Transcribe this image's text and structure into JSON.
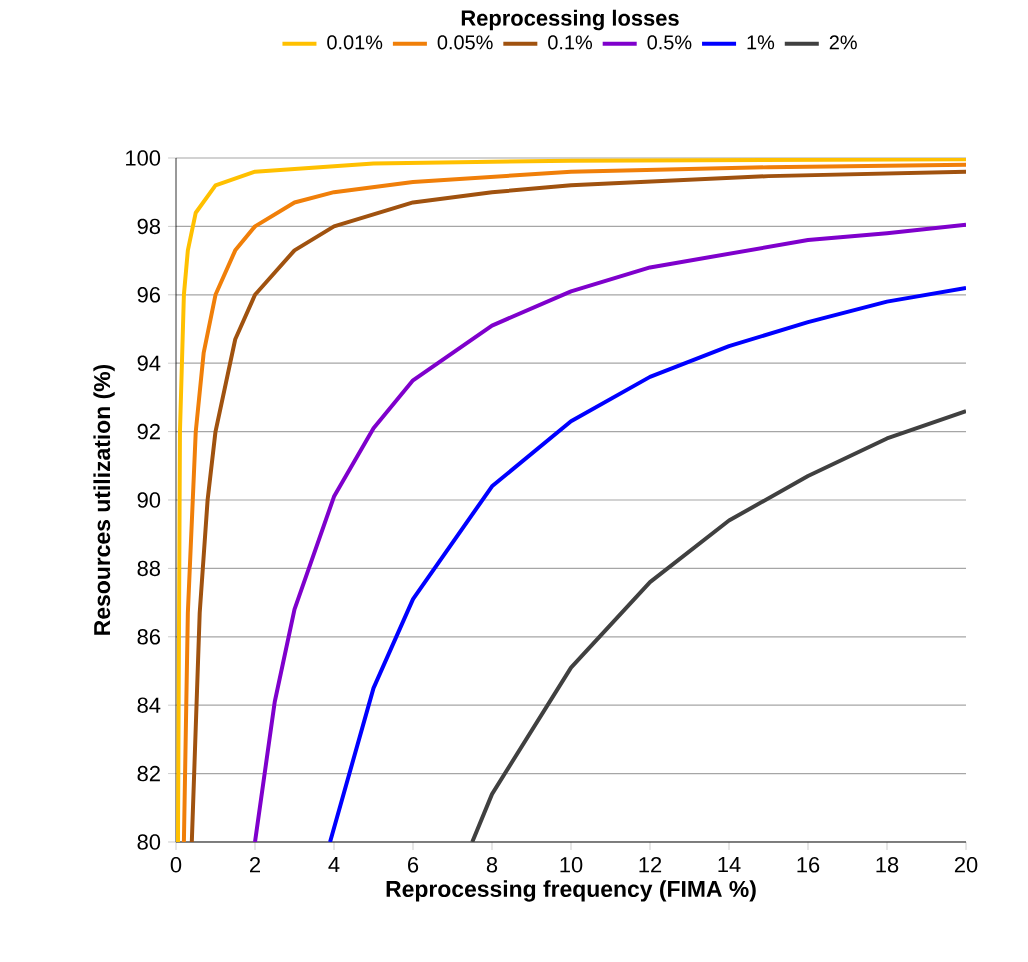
{
  "chart_data": {
    "type": "line",
    "legend_title": "Reprocessing losses",
    "xlabel": "Reprocessing frequency (FIMA %)",
    "ylabel": "Resources utilization (%)",
    "xlim": [
      0,
      20
    ],
    "ylim": [
      80,
      100
    ],
    "xticks": [
      0,
      2,
      4,
      6,
      8,
      10,
      12,
      14,
      16,
      18,
      20
    ],
    "yticks": [
      80,
      82,
      84,
      86,
      88,
      90,
      92,
      94,
      96,
      98,
      100
    ],
    "grid": "y",
    "legend": "top",
    "marker": "none",
    "line_style": "solid",
    "series": [
      {
        "name": "0.01%",
        "color": "#ffc000",
        "x": [
          0.05,
          0.1,
          0.2,
          0.3,
          0.5,
          1,
          2,
          5,
          10,
          20
        ],
        "values": [
          80,
          92,
          96,
          97.3,
          98.4,
          99.2,
          99.6,
          99.84,
          99.92,
          99.96
        ]
      },
      {
        "name": "0.05%",
        "color": "#f07f09",
        "x": [
          0.2,
          0.3,
          0.5,
          0.7,
          1,
          1.5,
          2,
          3,
          4,
          6,
          10,
          15,
          20
        ],
        "values": [
          80,
          86.7,
          92,
          94.3,
          96,
          97.3,
          98,
          98.7,
          99,
          99.3,
          99.6,
          99.73,
          99.8
        ]
      },
      {
        "name": "0.1%",
        "color": "#a0520f",
        "x": [
          0.4,
          0.6,
          0.8,
          1,
          1.5,
          2,
          3,
          4,
          6,
          8,
          10,
          15,
          20
        ],
        "values": [
          80,
          86.7,
          90,
          92,
          94.7,
          96,
          97.3,
          98,
          98.7,
          99,
          99.2,
          99.47,
          99.6
        ]
      },
      {
        "name": "0.5%",
        "color": "#7f00cc",
        "x": [
          2,
          2.5,
          3,
          4,
          5,
          6,
          8,
          10,
          12,
          14,
          16,
          18,
          20
        ],
        "values": [
          80,
          84.1,
          86.8,
          90.1,
          92.1,
          93.5,
          95.1,
          96.1,
          96.8,
          97.2,
          97.6,
          97.8,
          98.05
        ]
      },
      {
        "name": "1%",
        "color": "#0000ff",
        "x": [
          3.9,
          5,
          6,
          8,
          10,
          12,
          14,
          16,
          18,
          20
        ],
        "values": [
          80,
          84.5,
          87.1,
          90.4,
          92.3,
          93.6,
          94.5,
          95.2,
          95.8,
          96.2
        ]
      },
      {
        "name": "2%",
        "color": "#404040",
        "x": [
          7.5,
          8,
          10,
          12,
          14,
          16,
          18,
          20
        ],
        "values": [
          80,
          81.4,
          85.1,
          87.6,
          89.4,
          90.7,
          91.8,
          92.6
        ]
      }
    ]
  }
}
